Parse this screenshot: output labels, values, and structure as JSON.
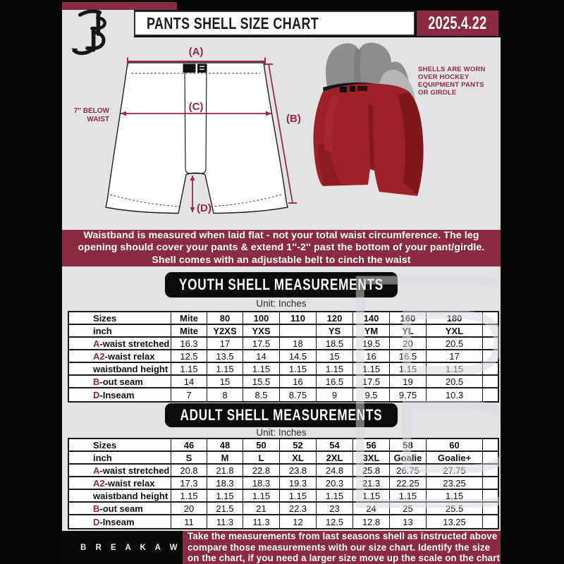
{
  "header": {
    "title": "PANTS SHELL SIZE CHART",
    "date": "2025.4.22"
  },
  "diagram": {
    "label_a": "(A)",
    "label_b": "(B)",
    "label_c": "(C)",
    "label_d": "(D)",
    "waist_note_line1": "7'' BELOW",
    "waist_note_line2": "WAIST"
  },
  "photo_note": {
    "lines": [
      "SHELLS ARE WORN",
      "OVER HOCKEY",
      "EQUIPMENT PANTS",
      "OR GIRDLE"
    ]
  },
  "info_banner": {
    "lines": [
      "Waistband is measured when laid flat - not your total waist circumference. The leg",
      "opening should cover your pants & extend 1''-2'' past the bottom of your pant/girdle.",
      "Shell comes with an adjustable belt to cinch the waist"
    ]
  },
  "sections": [
    {
      "id": "youth",
      "title": "YOUTH SHELL MEASUREMENTS",
      "unit": "Unit: Inches",
      "table": {
        "rows": [
          {
            "prefix": "",
            "label": "Sizes",
            "bold": true,
            "values": [
              "Mite",
              "80",
              "100",
              "110",
              "120",
              "140",
              "160",
              "180"
            ]
          },
          {
            "prefix": "",
            "label": "inch",
            "bold": true,
            "values": [
              "Mite",
              "Y2XS",
              "YXS",
              "",
              "YS",
              "YM",
              "YL",
              "YXL"
            ]
          },
          {
            "prefix": "A",
            "label": "-waist stretched",
            "bold": false,
            "values": [
              "16.3",
              "17",
              "17.5",
              "18",
              "18.5",
              "19.5",
              "20",
              "20.5"
            ]
          },
          {
            "prefix": "A2",
            "label": "-waist relax",
            "bold": false,
            "values": [
              "12.5",
              "13.5",
              "14",
              "14.5",
              "15",
              "16",
              "16.5",
              "17"
            ]
          },
          {
            "prefix": "",
            "label": "waistband height",
            "bold": false,
            "values": [
              "1.15",
              "1.15",
              "1.15",
              "1.15",
              "1.15",
              "1.15",
              "1.15",
              "1.15"
            ]
          },
          {
            "prefix": "B",
            "label": "-out seam",
            "bold": false,
            "values": [
              "14",
              "15",
              "15.5",
              "16",
              "16.5",
              "17.5",
              "19",
              "20.5"
            ]
          },
          {
            "prefix": "D",
            "label": "-Inseam",
            "bold": false,
            "values": [
              "7",
              "8",
              "8.5",
              "8.75",
              "9",
              "9.5",
              "9.75",
              "10.3"
            ]
          }
        ]
      }
    },
    {
      "id": "adult",
      "title": "ADULT SHELL MEASUREMENTS",
      "unit": "Unit: Inches",
      "table": {
        "rows": [
          {
            "prefix": "",
            "label": "Sizes",
            "bold": true,
            "values": [
              "46",
              "48",
              "50",
              "52",
              "54",
              "56",
              "58",
              "60"
            ]
          },
          {
            "prefix": "",
            "label": "inch",
            "bold": true,
            "values": [
              "S",
              "M",
              "L",
              "XL",
              "2XL",
              "3XL",
              "Goalie",
              "Goalie+"
            ]
          },
          {
            "prefix": "A",
            "label": "-waist stretched",
            "bold": false,
            "values": [
              "20.8",
              "21.8",
              "22.8",
              "23.8",
              "24.8",
              "25.8",
              "26.75",
              "27.75"
            ]
          },
          {
            "prefix": "A2",
            "label": "-waist relax",
            "bold": false,
            "values": [
              "17.3",
              "18.3",
              "18.3",
              "19.3",
              "20.3",
              "21.3",
              "22.25",
              "23.25"
            ]
          },
          {
            "prefix": "",
            "label": "waistband height",
            "bold": false,
            "values": [
              "1.15",
              "1.15",
              "1.15",
              "1.15",
              "1.15",
              "1.15",
              "1.15",
              "1.15"
            ]
          },
          {
            "prefix": "B",
            "label": "-out seam",
            "bold": false,
            "values": [
              "20",
              "21.5",
              "21",
              "22.3",
              "23",
              "24",
              "25",
              "25.5"
            ]
          },
          {
            "prefix": "D",
            "label": "-Inseam",
            "bold": false,
            "values": [
              "11",
              "11.3",
              "11.3",
              "12",
              "12.5",
              "12.8",
              "13",
              "13.25"
            ]
          }
        ]
      }
    }
  ],
  "footer": {
    "brand": "B R E A K A W A Y",
    "lines": [
      "Take the measurements from last seasons shell as instructed above",
      "compare those measurements  with our size chart. Identify the size",
      "on the chart, if you need a larger size move up the scale on the chart"
    ]
  },
  "watermark_letter": "B",
  "colors": {
    "maroon": "#8a2b43",
    "diagram_accent": "#9b2743",
    "content_bg": "#e3e3e5",
    "black": "#050505",
    "shell_red": "#9d2127",
    "white": "#ffffff"
  }
}
